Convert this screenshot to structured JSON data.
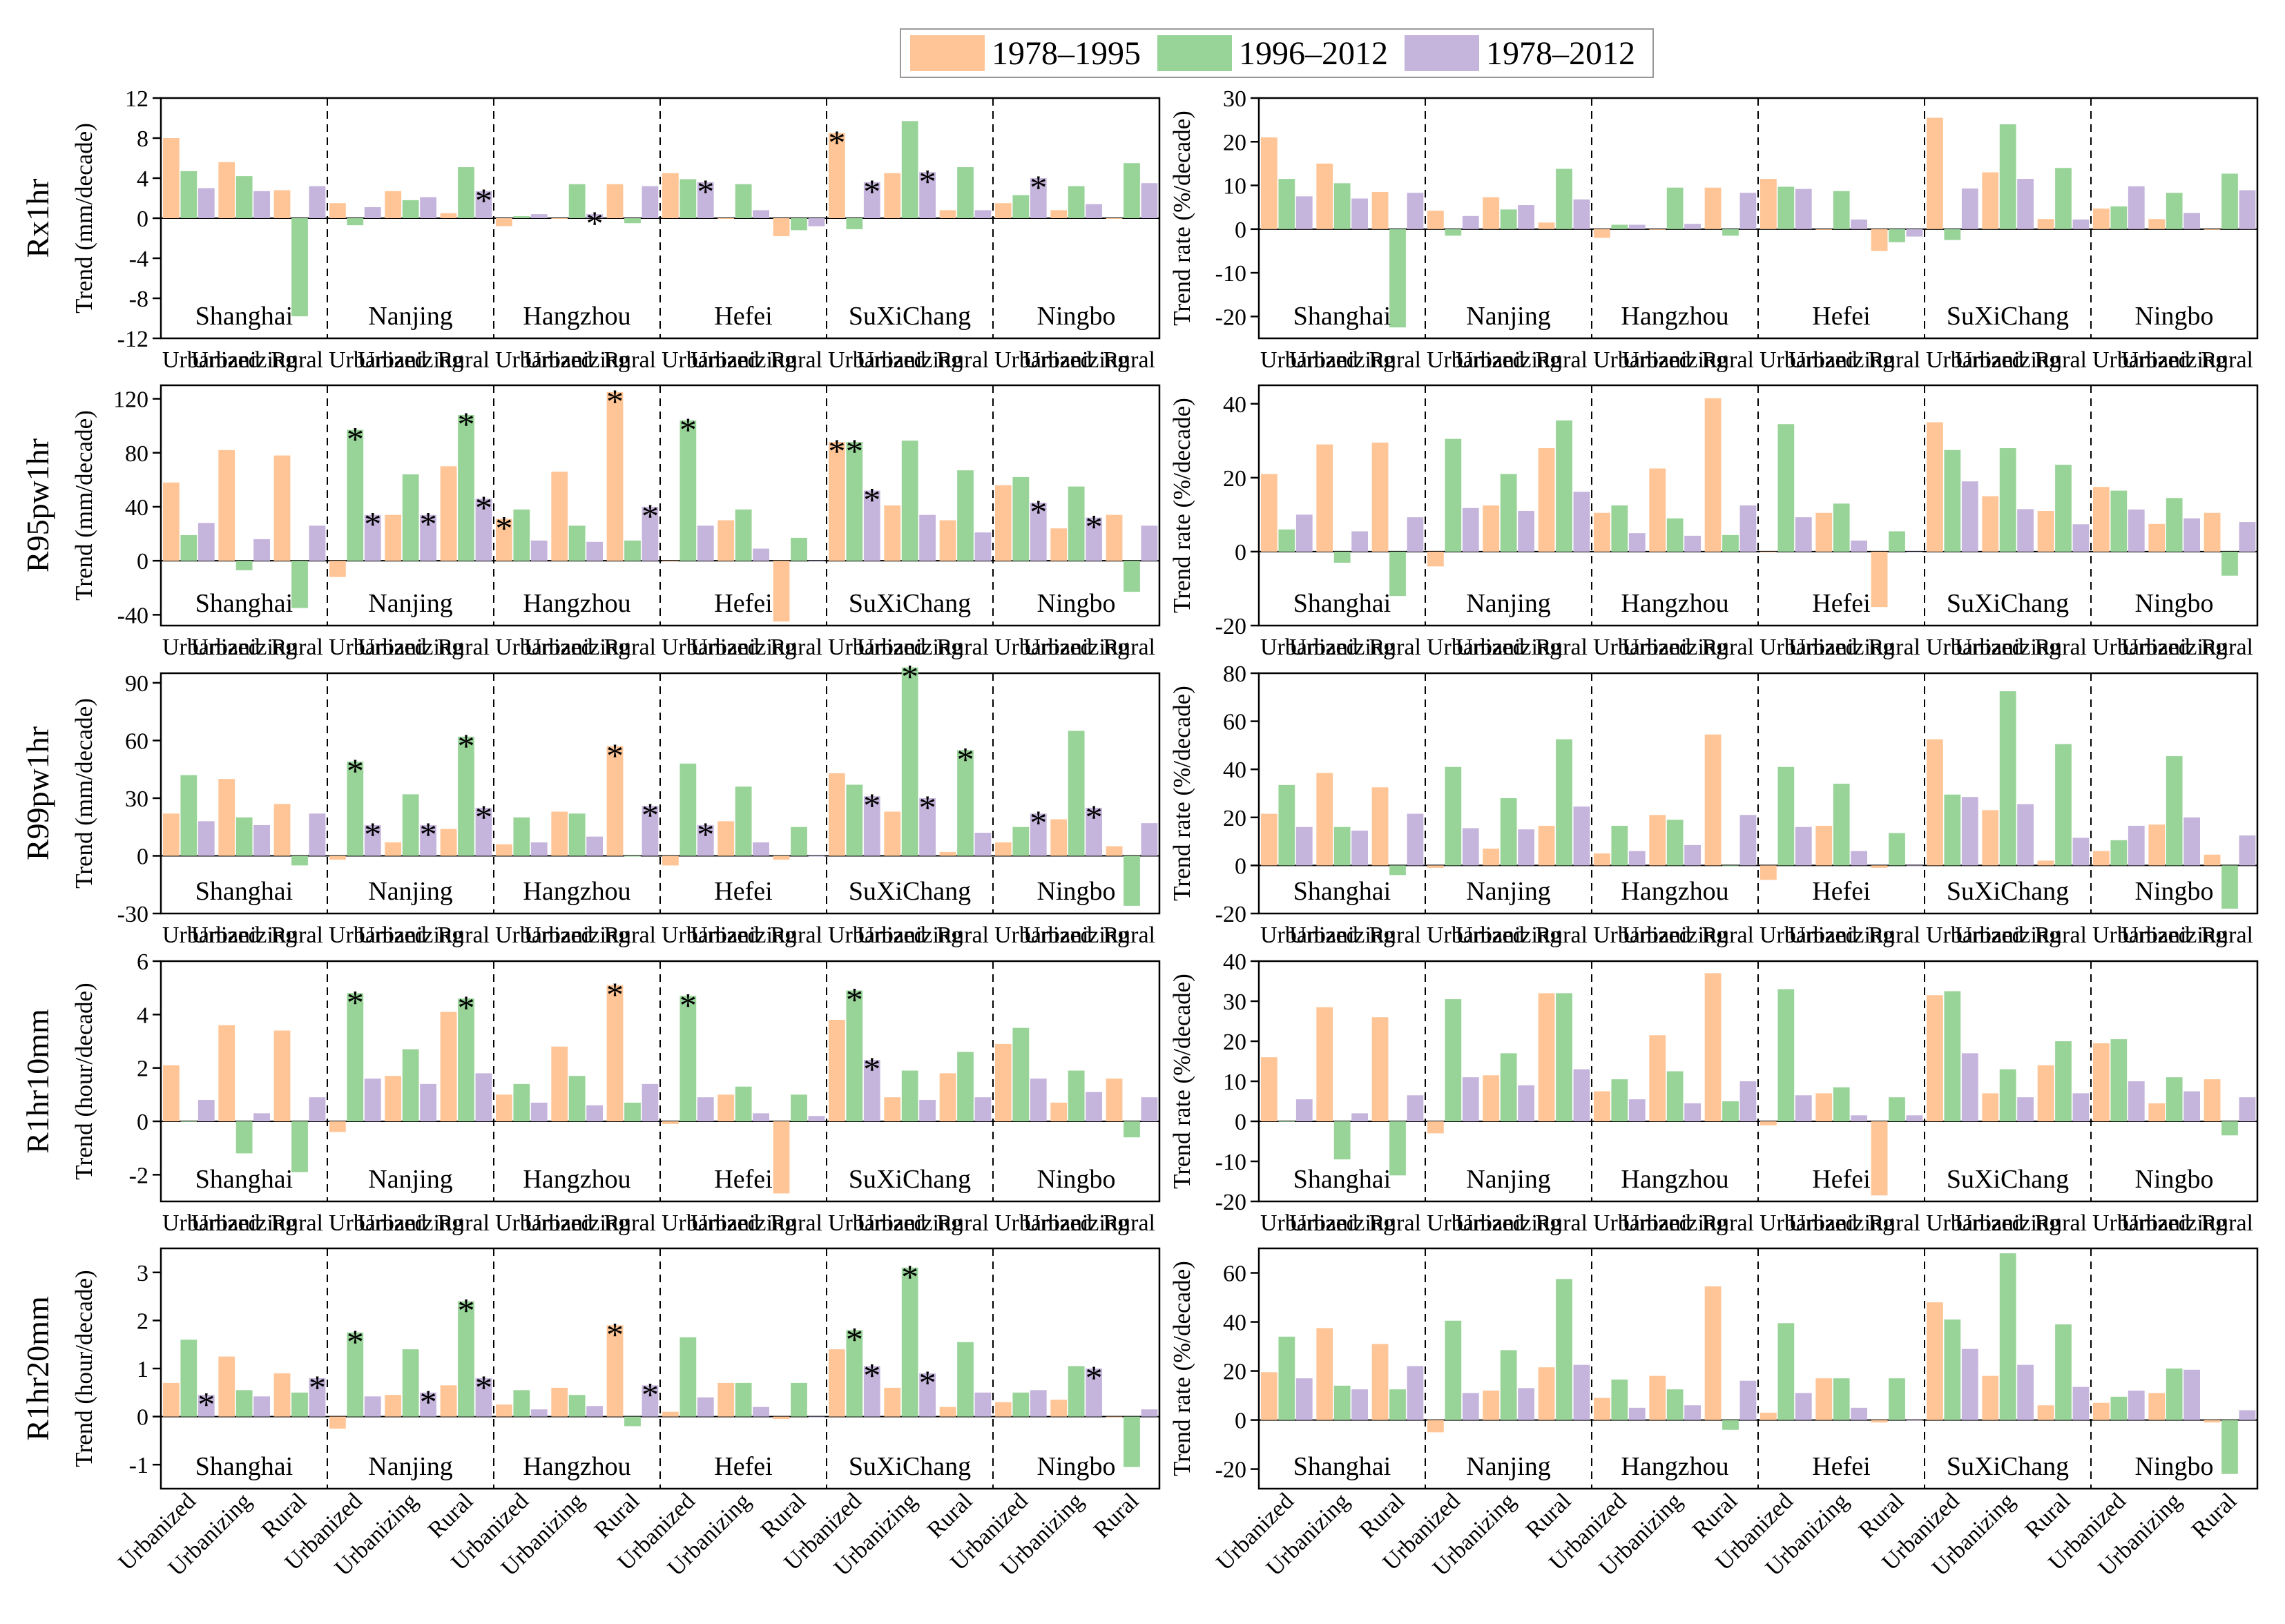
{
  "legend": [
    {
      "name": "1978–1995",
      "color": "#FFC596"
    },
    {
      "name": "1996–2012",
      "color": "#98D498"
    },
    {
      "name": "1978–2012",
      "color": "#C5B4DC"
    }
  ],
  "cities": [
    "Shanghai",
    "Nanjing",
    "Hangzhou",
    "Hefei",
    "SuXiChang",
    "Ningbo"
  ],
  "categories": [
    "Urbanized",
    "Urbanizing",
    "Rural"
  ],
  "chart_data": [
    {
      "type": "bar",
      "row_label": "Rx1hr",
      "ylabel": "Trend (mm/decade)",
      "ylim": [
        -12,
        12
      ],
      "yticks": [
        -12,
        -8,
        -4,
        0,
        4,
        8,
        12
      ],
      "series": [
        {
          "name": "1978–1995",
          "values": [
            8,
            5.6,
            2.8,
            1.5,
            2.7,
            0.5,
            -0.8,
            0,
            3.4,
            4.5,
            0,
            -1.8,
            8.5,
            4.5,
            0.8,
            1.5,
            0.8,
            0
          ]
        },
        {
          "name": "1996–2012",
          "values": [
            4.7,
            4.2,
            -9.8,
            -0.7,
            1.8,
            5.1,
            0.2,
            3.4,
            -0.5,
            3.9,
            3.4,
            -1.2,
            -1.1,
            9.7,
            5.1,
            2.3,
            3.2,
            5.5
          ]
        },
        {
          "name": "1978–2012",
          "values": [
            3,
            2.7,
            3.2,
            1.1,
            2.1,
            2.7,
            0.4,
            0.4,
            3.2,
            3.6,
            0.8,
            -0.8,
            3.6,
            4.6,
            0.8,
            4,
            1.4,
            3.5
          ]
        }
      ],
      "stars": [
        [
          7,
          2
        ],
        [
          5,
          2
        ],
        [
          9,
          2
        ],
        [
          12,
          0
        ],
        [
          12,
          2
        ],
        [
          13,
          2
        ],
        [
          15,
          2
        ]
      ]
    },
    {
      "type": "bar",
      "row_label": "Rx1hr",
      "ylabel": "Trend rate (%/decade)",
      "ylim": [
        -25,
        30
      ],
      "yticks": [
        -20,
        -10,
        0,
        10,
        20,
        30
      ],
      "series": [
        {
          "name": "1978–1995",
          "values": [
            21,
            15,
            8.5,
            4.2,
            7.3,
            1.5,
            -2,
            0,
            9.5,
            11.5,
            0,
            -5,
            25.5,
            13,
            2.3,
            4.7,
            2.3,
            0
          ]
        },
        {
          "name": "1996–2012",
          "values": [
            11.5,
            10.5,
            -22.5,
            -1.5,
            4.5,
            13.8,
            1,
            9.5,
            -1.5,
            9.7,
            8.7,
            -3,
            -2.5,
            24,
            14,
            5.2,
            8.3,
            12.7
          ]
        },
        {
          "name": "1978–2012",
          "values": [
            7.5,
            7,
            8.3,
            3,
            5.5,
            6.8,
            1,
            1.2,
            8.3,
            9.2,
            2.2,
            -1.7,
            9.3,
            11.5,
            2.2,
            9.8,
            3.7,
            8.9
          ]
        }
      ],
      "stars": []
    },
    {
      "type": "bar",
      "row_label": "R95pw1hr",
      "ylabel": "Trend (mm/decade)",
      "ylim": [
        -48,
        130
      ],
      "yticks": [
        -40,
        0,
        40,
        80,
        120
      ],
      "series": [
        {
          "name": "1978–1995",
          "values": [
            58,
            82,
            78,
            -12,
            34,
            70,
            31,
            66,
            125,
            0,
            30,
            -45,
            88,
            41,
            30,
            56,
            24,
            34
          ]
        },
        {
          "name": "1996–2012",
          "values": [
            19,
            -7,
            -35,
            97,
            64,
            108,
            38,
            26,
            15,
            104,
            38,
            17,
            88,
            89,
            67,
            62,
            55,
            -23
          ]
        },
        {
          "name": "1978–2012",
          "values": [
            28,
            16,
            26,
            34,
            34,
            46,
            15,
            14,
            40,
            26,
            9,
            0,
            52,
            34,
            21,
            43,
            32,
            26
          ]
        }
      ],
      "stars": [
        [
          3,
          1
        ],
        [
          3,
          2
        ],
        [
          4,
          2
        ],
        [
          5,
          1
        ],
        [
          5,
          2
        ],
        [
          6,
          0
        ],
        [
          8,
          0
        ],
        [
          8,
          2
        ],
        [
          9,
          1
        ],
        [
          12,
          0
        ],
        [
          12,
          1
        ],
        [
          12,
          2
        ],
        [
          15,
          2
        ],
        [
          16,
          2
        ]
      ]
    },
    {
      "type": "bar",
      "row_label": "R95pw1hr",
      "ylabel": "Trend rate (%/decade)",
      "ylim": [
        -20,
        45
      ],
      "yticks": [
        -20,
        0,
        20,
        40
      ],
      "series": [
        {
          "name": "1978–1995",
          "values": [
            21,
            29,
            29.5,
            -4,
            12.5,
            28,
            10.5,
            22.5,
            41.5,
            0,
            10.5,
            -15,
            35,
            15,
            11,
            17.5,
            7.5,
            10.5
          ]
        },
        {
          "name": "1996–2012",
          "values": [
            6,
            -3,
            -12,
            30.5,
            21,
            35.5,
            12.5,
            9,
            4.5,
            34.5,
            13,
            5.5,
            27.5,
            28,
            23.5,
            16.5,
            14.5,
            -6.5
          ]
        },
        {
          "name": "1978–2012",
          "values": [
            10,
            5.5,
            9.3,
            11.8,
            11,
            16.2,
            5,
            4.3,
            12.5,
            9.3,
            3,
            0,
            19,
            11.5,
            7.4,
            11.4,
            9,
            8
          ]
        }
      ],
      "stars": []
    },
    {
      "type": "bar",
      "row_label": "R99pw1hr",
      "ylabel": "Trend (mm/decade)",
      "ylim": [
        -30,
        95
      ],
      "yticks": [
        -30,
        0,
        30,
        60,
        90
      ],
      "series": [
        {
          "name": "1978–1995",
          "values": [
            22,
            40,
            27,
            -2,
            7,
            14,
            6,
            23,
            57,
            -5,
            18,
            -2,
            43,
            23,
            2,
            7,
            19,
            5
          ]
        },
        {
          "name": "1996–2012",
          "values": [
            42,
            20,
            -5,
            49,
            32,
            62,
            20,
            22,
            0,
            48,
            36,
            15,
            37,
            98,
            55,
            15,
            65,
            -26
          ]
        },
        {
          "name": "1978–2012",
          "values": [
            18,
            16,
            22,
            16,
            16,
            25,
            7,
            10,
            26,
            16,
            7,
            0,
            31,
            30,
            12,
            22,
            25,
            17
          ]
        }
      ],
      "stars": [
        [
          3,
          1
        ],
        [
          3,
          2
        ],
        [
          4,
          2
        ],
        [
          5,
          1
        ],
        [
          5,
          2
        ],
        [
          8,
          0
        ],
        [
          8,
          2
        ],
        [
          9,
          2
        ],
        [
          12,
          2
        ],
        [
          13,
          1
        ],
        [
          13,
          2
        ],
        [
          14,
          1
        ],
        [
          15,
          2
        ],
        [
          16,
          2
        ]
      ]
    },
    {
      "type": "bar",
      "row_label": "R99pw1hr",
      "ylabel": "Trend rate (%/decade)",
      "ylim": [
        -20,
        80
      ],
      "yticks": [
        -20,
        0,
        20,
        40,
        60,
        80
      ],
      "series": [
        {
          "name": "1978–1995",
          "values": [
            21.5,
            38.5,
            32.5,
            -1,
            7,
            16.5,
            5,
            21,
            54.5,
            -6,
            16.5,
            -1,
            52.5,
            23,
            2,
            6,
            17,
            4.5
          ]
        },
        {
          "name": "1996–2012",
          "values": [
            33.5,
            16,
            -4,
            41,
            28,
            52.5,
            16.5,
            19,
            0,
            41,
            34,
            13.5,
            29.5,
            72.5,
            50.5,
            10.5,
            45.5,
            -18
          ]
        },
        {
          "name": "1978–2012",
          "values": [
            16,
            14.5,
            21.5,
            15.5,
            15,
            24.5,
            6,
            8.5,
            21,
            16,
            6,
            0,
            28.5,
            25.5,
            11.5,
            16.5,
            20,
            12.5
          ]
        }
      ],
      "stars": []
    },
    {
      "type": "bar",
      "row_label": "R1hr10mm",
      "ylabel": "Trend (hour/decade)",
      "ylim": [
        -3,
        6
      ],
      "yticks": [
        -2,
        0,
        2,
        4,
        6
      ],
      "series": [
        {
          "name": "1978–1995",
          "values": [
            2.1,
            3.6,
            3.4,
            -0.4,
            1.7,
            4.1,
            1,
            2.8,
            5.1,
            -0.1,
            1,
            -2.7,
            3.8,
            0.9,
            1.8,
            2.9,
            0.7,
            1.6
          ]
        },
        {
          "name": "1996–2012",
          "values": [
            0,
            -1.2,
            -1.9,
            4.8,
            2.7,
            4.6,
            1.4,
            1.7,
            0.7,
            4.7,
            1.3,
            1,
            4.9,
            1.9,
            2.6,
            3.5,
            1.9,
            -0.6
          ]
        },
        {
          "name": "1978–2012",
          "values": [
            0.8,
            0.3,
            0.9,
            1.6,
            1.4,
            1.8,
            0.7,
            0.6,
            1.4,
            0.9,
            0.3,
            0.2,
            2.3,
            0.8,
            0.9,
            1.6,
            1.1,
            0.9
          ]
        }
      ],
      "stars": [
        [
          3,
          1
        ],
        [
          5,
          1
        ],
        [
          8,
          0
        ],
        [
          9,
          1
        ],
        [
          12,
          1
        ],
        [
          12,
          2
        ]
      ]
    },
    {
      "type": "bar",
      "row_label": "R1hr10mm",
      "ylabel": "Trend rate (%/decade)",
      "ylim": [
        -20,
        40
      ],
      "yticks": [
        -20,
        -10,
        0,
        10,
        20,
        30,
        40
      ],
      "series": [
        {
          "name": "1978–1995",
          "values": [
            16,
            28.5,
            26,
            -3,
            11.5,
            32,
            7.5,
            21.5,
            37,
            -1,
            7,
            -18.5,
            31.5,
            7,
            14,
            19.5,
            4.5,
            10.5
          ]
        },
        {
          "name": "1996–2012",
          "values": [
            0,
            -9.5,
            -13.5,
            30.5,
            17,
            32,
            10.5,
            12.5,
            5,
            33,
            8.5,
            6,
            32.5,
            13,
            20,
            20.5,
            11,
            -3.5
          ]
        },
        {
          "name": "1978–2012",
          "values": [
            5.5,
            2,
            6.5,
            11,
            9,
            13,
            5.5,
            4.5,
            10,
            6.5,
            1.5,
            1.5,
            17,
            6,
            7,
            10,
            7.5,
            6
          ]
        }
      ],
      "stars": []
    },
    {
      "type": "bar",
      "row_label": "R1hr20mm",
      "ylabel": "Trend (hour/decade)",
      "ylim": [
        -1.5,
        3.5
      ],
      "yticks": [
        -1,
        0,
        1,
        2,
        3
      ],
      "series": [
        {
          "name": "1978–1995",
          "values": [
            0.7,
            1.25,
            0.9,
            -0.25,
            0.45,
            0.65,
            0.25,
            0.6,
            1.9,
            0.1,
            0.7,
            -0.05,
            1.4,
            0.6,
            0.2,
            0.3,
            0.35,
            0
          ]
        },
        {
          "name": "1996–2012",
          "values": [
            1.6,
            0.55,
            0.5,
            1.75,
            1.4,
            2.4,
            0.55,
            0.45,
            -0.2,
            1.65,
            0.7,
            0.7,
            1.8,
            3.1,
            1.55,
            0.5,
            1.05,
            -1.05
          ]
        },
        {
          "name": "1978–2012",
          "values": [
            0.45,
            0.42,
            0.8,
            0.42,
            0.5,
            0.8,
            0.15,
            0.22,
            0.65,
            0.4,
            0.2,
            0,
            1.05,
            0.9,
            0.5,
            0.55,
            1,
            0.15
          ]
        }
      ],
      "stars": [
        [
          0,
          2
        ],
        [
          2,
          2
        ],
        [
          3,
          1
        ],
        [
          4,
          2
        ],
        [
          5,
          1
        ],
        [
          5,
          2
        ],
        [
          8,
          0
        ],
        [
          8,
          2
        ],
        [
          12,
          1
        ],
        [
          12,
          2
        ],
        [
          13,
          1
        ],
        [
          13,
          2
        ],
        [
          16,
          2
        ]
      ]
    },
    {
      "type": "bar",
      "row_label": "R1hr20mm",
      "ylabel": "Trend rate (%/decade)",
      "ylim": [
        -28,
        70
      ],
      "yticks": [
        -20,
        0,
        20,
        40,
        60
      ],
      "series": [
        {
          "name": "1978–1995",
          "values": [
            19.5,
            37.5,
            31,
            -5,
            12,
            21.5,
            9,
            18,
            54.5,
            3,
            17,
            -1,
            48,
            18,
            6,
            7,
            11,
            -1
          ]
        },
        {
          "name": "1996–2012",
          "values": [
            34,
            14,
            12.5,
            40.5,
            28.5,
            57.5,
            16.5,
            12.5,
            -4,
            39.5,
            17,
            17,
            41,
            68,
            39,
            9.5,
            21,
            -22
          ]
        },
        {
          "name": "1978–2012",
          "values": [
            17,
            12.5,
            22,
            11,
            13,
            22.5,
            5,
            6,
            16,
            11,
            5,
            0,
            29,
            22.5,
            13.5,
            12,
            20.5,
            4
          ]
        }
      ],
      "stars": []
    }
  ]
}
